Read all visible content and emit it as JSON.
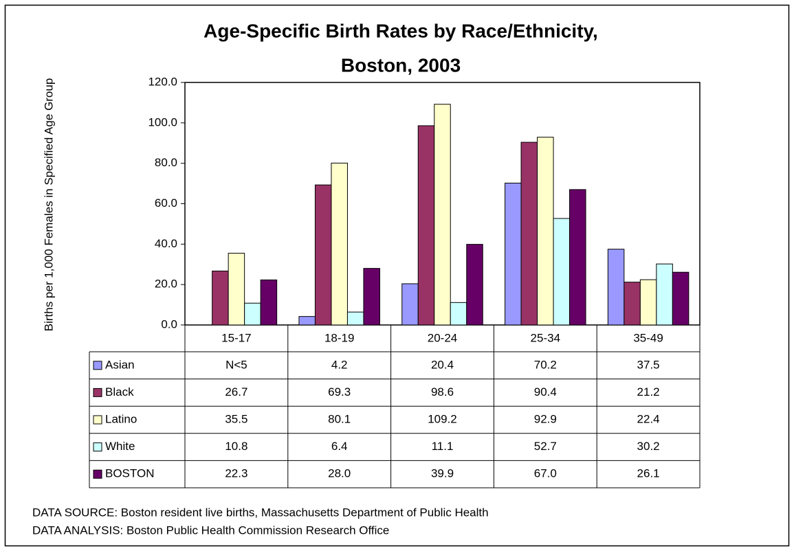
{
  "chart_data": {
    "type": "bar",
    "title": [
      "Age-Specific Birth Rates by Race/Ethnicity,",
      "Boston, 2003"
    ],
    "ylabel": "Births per 1,000 Females in Specified Age Group",
    "categories": [
      "15-17",
      "18-19",
      "20-24",
      "25-34",
      "35-49"
    ],
    "series": [
      {
        "name": "Asian",
        "color": "#9999ff",
        "values": [
          null,
          4.2,
          20.4,
          70.2,
          37.5
        ],
        "value_labels": [
          "N<5",
          "4.2",
          "20.4",
          "70.2",
          "37.5"
        ]
      },
      {
        "name": "Black",
        "color": "#993366",
        "values": [
          26.7,
          69.3,
          98.6,
          90.4,
          21.2
        ],
        "value_labels": [
          "26.7",
          "69.3",
          "98.6",
          "90.4",
          "21.2"
        ]
      },
      {
        "name": "Latino",
        "color": "#ffffcc",
        "values": [
          35.5,
          80.1,
          109.2,
          92.9,
          22.4
        ],
        "value_labels": [
          "35.5",
          "80.1",
          "109.2",
          "92.9",
          "22.4"
        ]
      },
      {
        "name": "White",
        "color": "#ccffff",
        "values": [
          10.8,
          6.4,
          11.1,
          52.7,
          30.2
        ],
        "value_labels": [
          "10.8",
          "6.4",
          "11.1",
          "52.7",
          "30.2"
        ]
      },
      {
        "name": "BOSTON",
        "color": "#660066",
        "values": [
          22.3,
          28.0,
          39.9,
          67.0,
          26.1
        ],
        "value_labels": [
          "22.3",
          "28.0",
          "39.9",
          "67.0",
          "26.1"
        ]
      }
    ],
    "ylim": [
      0,
      120
    ],
    "yticks": [
      {
        "value": 0,
        "label": "0.0"
      },
      {
        "value": 20,
        "label": "20.0"
      },
      {
        "value": 40,
        "label": "40.0"
      },
      {
        "value": 60,
        "label": "60.0"
      },
      {
        "value": 80,
        "label": "80.0"
      },
      {
        "value": 100,
        "label": "100.0"
      },
      {
        "value": 120,
        "label": "120.0"
      }
    ],
    "grid": false,
    "notes": [
      "DATA SOURCE: Boston resident live births, Massachusetts Department of Public Health",
      "DATA ANALYSIS: Boston Public Health Commission Research Office"
    ]
  }
}
